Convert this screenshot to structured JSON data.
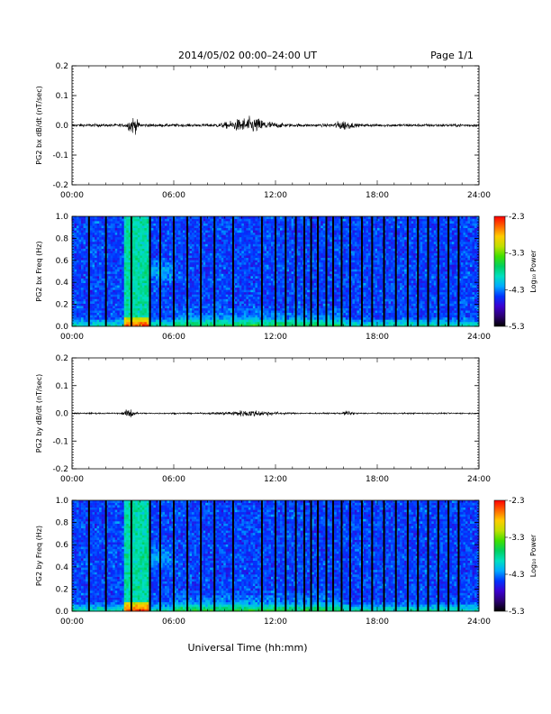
{
  "header": {
    "title": "2014/05/02  00:00–24:00 UT",
    "page": "Page 1/1"
  },
  "xlabel": "Universal Time (hh:mm)",
  "colorbar_label": "Log₁₀ Power",
  "colorbar_colors": [
    "#000000",
    "#2b0070",
    "#3b00d0",
    "#0033ff",
    "#00aaff",
    "#00e0c0",
    "#00d060",
    "#40e000",
    "#c0e000",
    "#ffcc00",
    "#ff6600",
    "#ff0000"
  ],
  "chart_data": [
    {
      "type": "line",
      "ylabel": "PG2 bx dB/dt (nT/sec)",
      "xlim": [
        0,
        24
      ],
      "ylim": [
        -0.2,
        0.2
      ],
      "x_ticks": [
        "00:00",
        "06:00",
        "12:00",
        "18:00",
        "24:00"
      ],
      "y_ticks": [
        "0.2",
        "0.1",
        "0.0",
        "-0.1",
        "-0.2"
      ],
      "bursts": [
        {
          "center_hour": 3.6,
          "width_hour": 0.6,
          "amplitude": 0.04
        },
        {
          "center_hour": 10.5,
          "width_hour": 2.5,
          "amplitude": 0.035
        },
        {
          "center_hour": 16.0,
          "width_hour": 1.0,
          "amplitude": 0.02
        }
      ],
      "baseline_amplitude": 0.008
    },
    {
      "type": "heatmap",
      "ylabel": "PG2 bx Freq (Hz)",
      "xlim": [
        0,
        24
      ],
      "ylim": [
        0.0,
        1.0
      ],
      "x_ticks": [
        "00:00",
        "06:00",
        "12:00",
        "18:00",
        "24:00"
      ],
      "y_ticks": [
        "1.0",
        "0.8",
        "0.6",
        "0.4",
        "0.2",
        "0.0"
      ],
      "colorbar_ticks": [
        "-2.3",
        "-3.3",
        "-4.3",
        "-5.3"
      ],
      "color_range": [
        -5.3,
        -2.3
      ],
      "gap_hours": [
        1.0,
        2.0,
        3.5,
        4.6,
        5.2,
        6.0,
        6.8,
        7.6,
        8.4,
        9.5,
        11.2,
        12.0,
        12.6,
        13.2,
        13.7,
        14.1,
        14.5,
        15.0,
        15.4,
        15.9,
        16.4,
        17.1,
        17.7,
        18.4,
        19.1,
        19.8,
        20.4,
        21.0,
        21.6,
        22.2,
        22.8
      ]
    },
    {
      "type": "line",
      "ylabel": "PG2 by dB/dt (nT/sec)",
      "xlim": [
        0,
        24
      ],
      "ylim": [
        -0.2,
        0.2
      ],
      "x_ticks": [
        "00:00",
        "06:00",
        "12:00",
        "18:00",
        "24:00"
      ],
      "y_ticks": [
        "0.2",
        "0.1",
        "0.0",
        "-0.1",
        "-0.2"
      ],
      "bursts": [
        {
          "center_hour": 3.4,
          "width_hour": 0.6,
          "amplitude": 0.025
        },
        {
          "center_hour": 10.5,
          "width_hour": 3.0,
          "amplitude": 0.015
        },
        {
          "center_hour": 16.3,
          "width_hour": 0.6,
          "amplitude": 0.012
        }
      ],
      "baseline_amplitude": 0.004
    },
    {
      "type": "heatmap",
      "ylabel": "PG2 by Freq (Hz)",
      "xlim": [
        0,
        24
      ],
      "ylim": [
        0.0,
        1.0
      ],
      "x_ticks": [
        "00:00",
        "06:00",
        "12:00",
        "18:00",
        "24:00"
      ],
      "y_ticks": [
        "1.0",
        "0.8",
        "0.6",
        "0.4",
        "0.2",
        "0.0"
      ],
      "colorbar_ticks": [
        "-2.3",
        "-3.3",
        "-4.3",
        "-5.3"
      ],
      "color_range": [
        -5.3,
        -2.3
      ],
      "gap_hours": [
        1.0,
        2.0,
        3.5,
        4.6,
        5.2,
        6.0,
        6.8,
        7.6,
        8.4,
        9.5,
        11.2,
        12.0,
        12.6,
        13.2,
        13.7,
        14.1,
        14.5,
        15.0,
        15.4,
        15.9,
        16.4,
        17.1,
        17.7,
        18.4,
        19.1,
        19.8,
        20.4,
        21.0,
        21.6,
        22.2,
        22.8
      ]
    }
  ]
}
